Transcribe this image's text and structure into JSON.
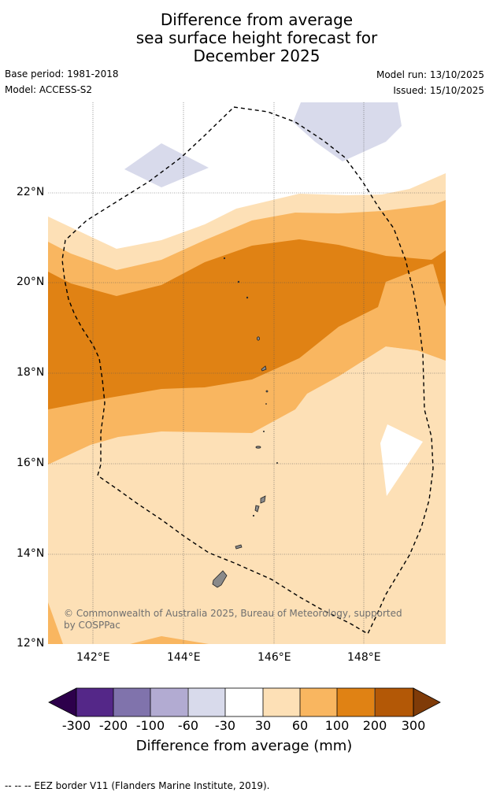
{
  "title": {
    "line1": "Difference from average",
    "line2": "sea surface height forecast for",
    "line3": "December 2025"
  },
  "meta": {
    "base_period": "Base period: 1981-2018",
    "model": "Model: ACCESS-S2",
    "model_run": "Model run: 13/10/2025",
    "issued": "Issued: 15/10/2025"
  },
  "map": {
    "lat_labels": [
      "22°N",
      "20°N",
      "18°N",
      "16°N",
      "14°N",
      "12°N"
    ],
    "lon_labels": [
      "142°E",
      "144°E",
      "146°E",
      "148°E"
    ],
    "copyright_line1": "© Commonwealth of Australia 2025, Bureau of Meteorology, supported",
    "copyright_line2": "by COSPPac"
  },
  "colorbar": {
    "labels": [
      "-300",
      "-200",
      "-100",
      "-60",
      "-30",
      "30",
      "60",
      "100",
      "200",
      "300"
    ],
    "title": "Difference from average (mm)",
    "colors": {
      "below_-300": "#2d004b",
      "-300_-200": "#542788",
      "-200_-100": "#8073ac",
      "-100_-60": "#b2abd2",
      "-60_-30": "#d8daeb",
      "-30_30": "#ffffff",
      "30_60": "#fde0b6",
      "60_100": "#f9b660",
      "100_200": "#e08214",
      "200_300": "#b35806",
      "above_300": "#7f3b08"
    }
  },
  "footer": "--  --  -- EEZ border V11 (Flanders Marine Institute, 2019)."
}
